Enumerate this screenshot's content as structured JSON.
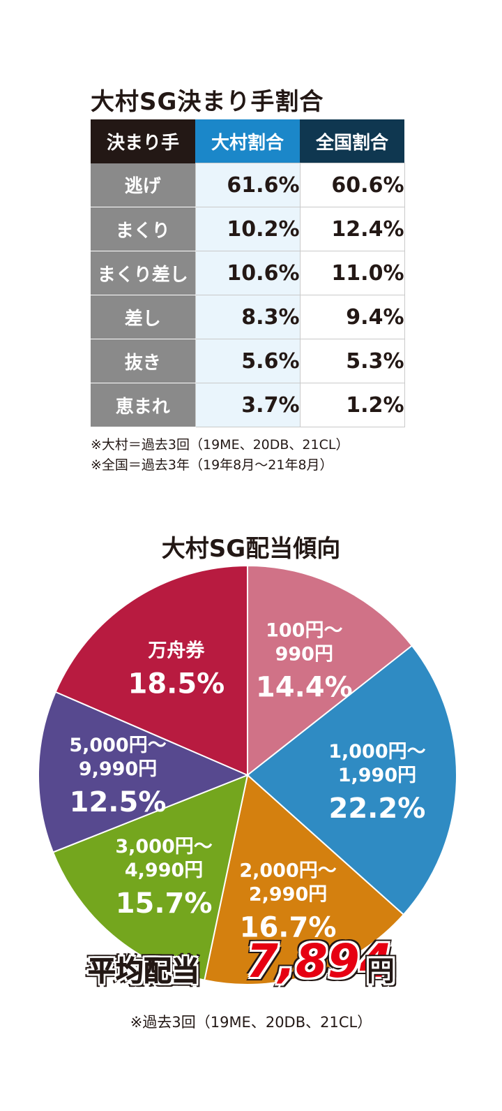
{
  "table_section": {
    "title": "大村SG決まり手割合",
    "headers": [
      "決まり手",
      "大村割合",
      "全国割合"
    ],
    "rows": [
      {
        "label": "逃げ",
        "omura": "61.6%",
        "national": "60.6%"
      },
      {
        "label": "まくり",
        "omura": "10.2%",
        "national": "12.4%"
      },
      {
        "label": "まくり差し",
        "omura": "10.6%",
        "national": "11.0%"
      },
      {
        "label": "差し",
        "omura": "8.3%",
        "national": "9.4%"
      },
      {
        "label": "抜き",
        "omura": "5.6%",
        "national": "5.3%"
      },
      {
        "label": "恵まれ",
        "omura": "3.7%",
        "national": "1.2%"
      }
    ],
    "notes": [
      "※大村＝過去3回（19ME、20DB、21CL）",
      "※全国＝過去3年（19年8月〜21年8月）"
    ]
  },
  "chart_data": [
    {
      "type": "table",
      "title": "大村SG決まり手割合",
      "columns": [
        "決まり手",
        "大村割合",
        "全国割合"
      ],
      "rows": [
        [
          "逃げ",
          61.6,
          60.6
        ],
        [
          "まくり",
          10.2,
          12.4
        ],
        [
          "まくり差し",
          10.6,
          11.0
        ],
        [
          "差し",
          8.3,
          9.4
        ],
        [
          "抜き",
          5.6,
          5.3
        ],
        [
          "恵まれ",
          3.7,
          1.2
        ]
      ]
    },
    {
      "type": "pie",
      "title": "大村SG配当傾向",
      "slices": [
        {
          "label": [
            "100円〜",
            "990円"
          ],
          "value": 14.4,
          "display": "14.4%",
          "color": "#d07287"
        },
        {
          "label": [
            "1,000円〜",
            "1,990円"
          ],
          "value": 22.2,
          "display": "22.2%",
          "color": "#2f8bc3"
        },
        {
          "label": [
            "2,000円〜",
            "2,990円"
          ],
          "value": 16.7,
          "display": "16.7%",
          "color": "#d4800f"
        },
        {
          "label": [
            "3,000円〜",
            "4,990円"
          ],
          "value": 15.7,
          "display": "15.7%",
          "color": "#74a61e"
        },
        {
          "label": [
            "5,000円〜",
            "9,990円"
          ],
          "value": 12.5,
          "display": "12.5%",
          "color": "#57498f"
        },
        {
          "label": [
            "万舟券"
          ],
          "value": 18.5,
          "display": "18.5%",
          "color": "#b81b40"
        }
      ]
    }
  ],
  "average": {
    "label": "平均配当",
    "value": "7,894",
    "unit": "円"
  },
  "pie_note": "※過去3回（19ME、20DB、21CL）"
}
